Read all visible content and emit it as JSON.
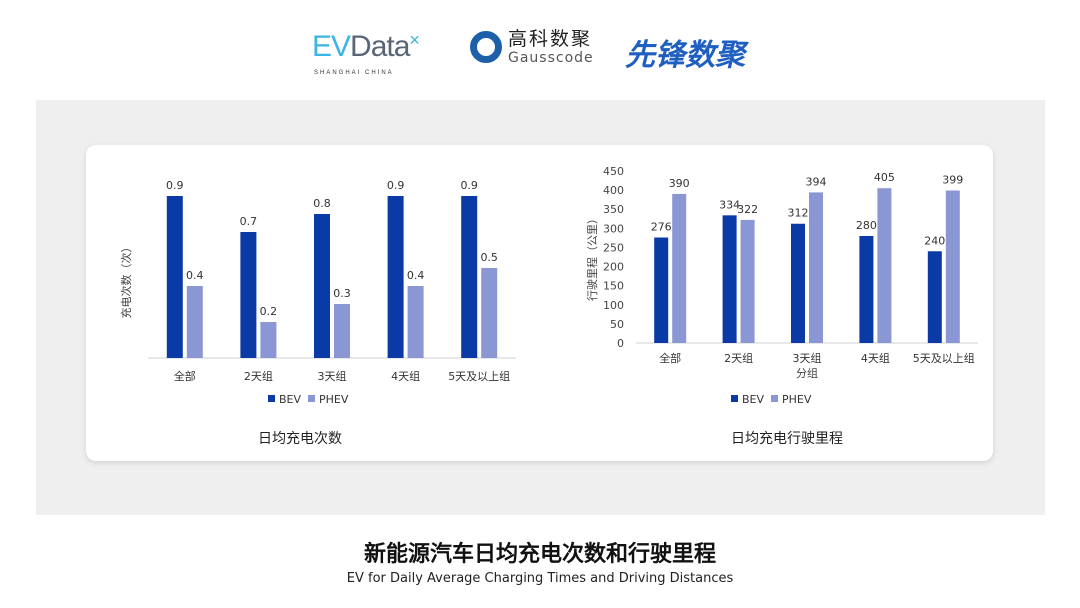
{
  "logos": {
    "evdata": "EVData",
    "evdata_sub": "SHANGHAI CHINA",
    "gausscode_cn": "高科数聚",
    "gausscode_en": "Gausscode",
    "xianfeng": "先锋数聚"
  },
  "colors": {
    "BEV": "#0a3aa6",
    "PHEV": "#8a97d4"
  },
  "chart_data": [
    {
      "type": "bar",
      "title": "日均充电次数",
      "ylabel": "充电次数（次）",
      "xlabel": "",
      "categories": [
        "全部",
        "2天组",
        "3天组",
        "4天组",
        "5天及以上组"
      ],
      "series": [
        {
          "name": "BEV",
          "values": [
            0.9,
            0.7,
            0.8,
            0.9,
            0.9
          ]
        },
        {
          "name": "PHEV",
          "values": [
            0.4,
            0.2,
            0.3,
            0.4,
            0.5
          ]
        }
      ],
      "ylim": [
        0,
        1
      ],
      "y_ticks_shown": false,
      "legend": "bottom",
      "grid": false
    },
    {
      "type": "bar",
      "title": "日均充电行驶里程",
      "ylabel": "行驶里程（公里）",
      "xlabel": "分组",
      "categories": [
        "全部",
        "2天组",
        "3天组",
        "4天组",
        "5天及以上组"
      ],
      "series": [
        {
          "name": "BEV",
          "values": [
            276,
            334,
            312,
            280,
            240
          ]
        },
        {
          "name": "PHEV",
          "values": [
            390,
            322,
            394,
            405,
            399
          ]
        }
      ],
      "ylim": [
        0,
        450
      ],
      "yticks": [
        0,
        50,
        100,
        150,
        200,
        250,
        300,
        350,
        400,
        450
      ],
      "legend": "bottom",
      "grid": false
    }
  ],
  "footer": {
    "title": "新能源汽车日均充电次数和行驶里程",
    "subtitle": "EV for Daily Average Charging Times and Driving Distances"
  }
}
